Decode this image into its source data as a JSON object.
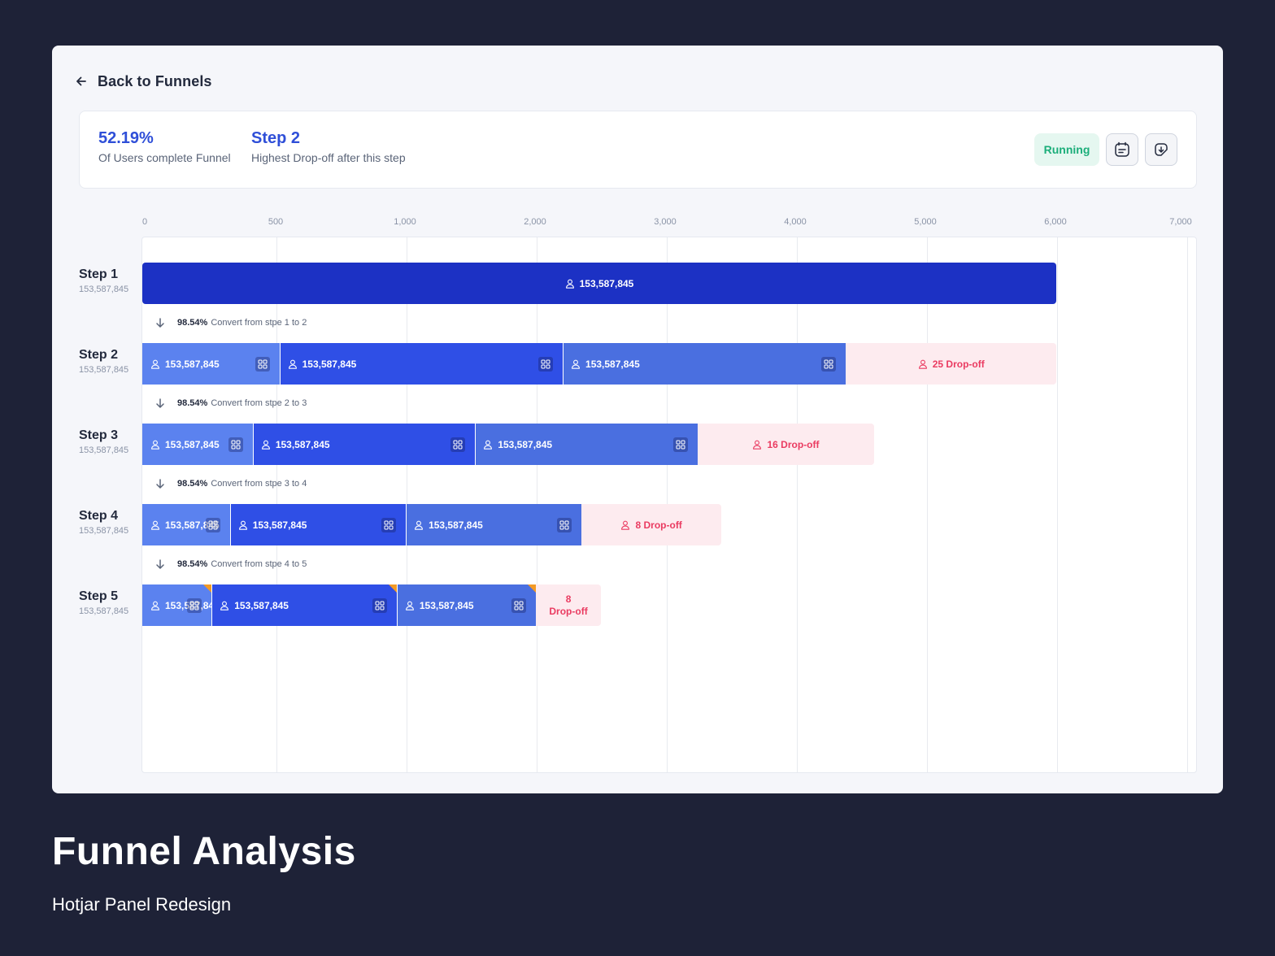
{
  "back_link": "Back to Funnels",
  "summary": {
    "completion_value": "52.19%",
    "completion_label": "Of Users complete Funnel",
    "dropoff_step": "Step 2",
    "dropoff_label": "Highest Drop-off after this step",
    "status": "Running",
    "status_color": "#1cae7a",
    "icons": [
      "calendar-note-icon",
      "download-file-icon"
    ]
  },
  "colors": {
    "step1_bar": "#1c31c4",
    "segment_light": "#5b82ef",
    "segment_dark": "#2f4fe6",
    "segment_mid": "#4a6fe0",
    "dropoff_bg": "#fdebef",
    "dropoff_text": "#ea3b61"
  },
  "chart_data": {
    "type": "bar",
    "orientation": "horizontal-stacked",
    "xlim": [
      0,
      7000
    ],
    "x_ticks": [
      "0",
      "500",
      "1,000",
      "2,000",
      "3,000",
      "4,000",
      "5,000",
      "6,000",
      "7,000"
    ],
    "grid": true,
    "steps": [
      {
        "name": "Step 1",
        "value": "153,587,845",
        "segments": [
          {
            "value": 6000,
            "label": "153,587,845"
          }
        ],
        "dropoff": null
      },
      {
        "name": "Step 2",
        "value": "153,587,845",
        "segments": [
          {
            "value": 900,
            "label": "153,587,845"
          },
          {
            "value": 1860,
            "label": "153,587,845"
          },
          {
            "value": 1860,
            "label": "153,587,845"
          }
        ],
        "dropoff": {
          "value": 1380,
          "label": "25 Drop-off"
        }
      },
      {
        "name": "Step 3",
        "value": "153,587,845",
        "segments": [
          {
            "value": 725,
            "label": "153,587,845"
          },
          {
            "value": 1460,
            "label": "153,587,845"
          },
          {
            "value": 1460,
            "label": "153,587,845"
          }
        ],
        "dropoff": {
          "value": 1160,
          "label": "16 Drop-off"
        }
      },
      {
        "name": "Step 4",
        "value": "153,587,845",
        "segments": [
          {
            "value": 575,
            "label": "153,587,845"
          },
          {
            "value": 1155,
            "label": "153,587,845"
          },
          {
            "value": 1155,
            "label": "153,587,845"
          }
        ],
        "dropoff": {
          "value": 915,
          "label": "8 Drop-off"
        }
      },
      {
        "name": "Step 5",
        "value": "153,587,845",
        "segments": [
          {
            "value": 455,
            "label": "153,587,845",
            "flag": true
          },
          {
            "value": 1215,
            "label": "153,587,845",
            "flag": true
          },
          {
            "value": 915,
            "label": "153,587,845",
            "flag": true
          }
        ],
        "dropoff": {
          "value": 425,
          "label": "8 Drop-off",
          "compact": true
        }
      }
    ],
    "conversions": [
      {
        "pct": "98.54%",
        "text": "Convert from stpe 1 to 2"
      },
      {
        "pct": "98.54%",
        "text": "Convert from stpe 2 to 3"
      },
      {
        "pct": "98.54%",
        "text": "Convert from stpe 3 to 4"
      },
      {
        "pct": "98.54%",
        "text": "Convert from stpe 4 to 5"
      }
    ]
  },
  "footer": {
    "title": "Funnel Analysis",
    "subtitle": "Hotjar Panel Redesign"
  }
}
